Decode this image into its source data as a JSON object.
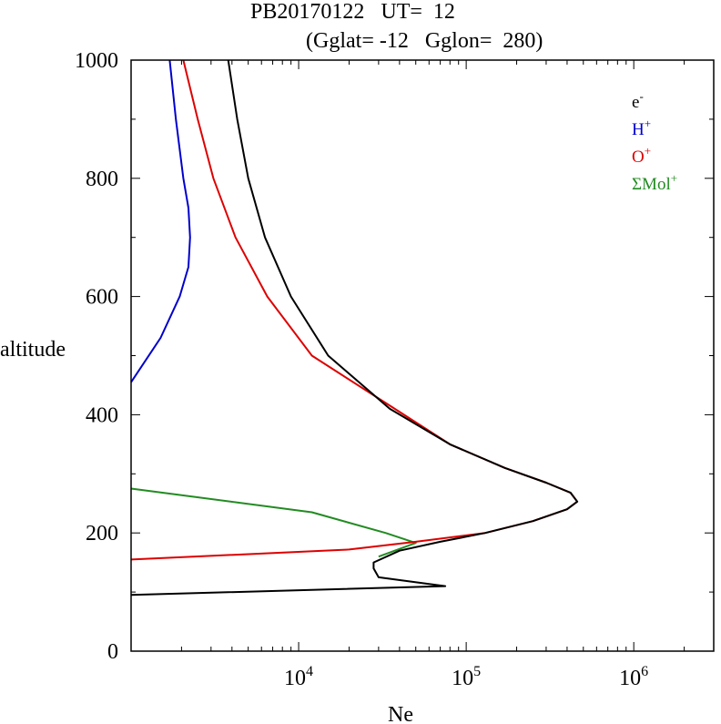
{
  "chart_data": {
    "type": "line",
    "title_line1": "PB20170122   UT=  12",
    "title_line2": "(Gglat= -12   Gglon=  280)",
    "xlabel": "Ne",
    "ylabel": "altitude",
    "x_scale": "log",
    "xlim": [
      1000,
      3000000
    ],
    "ylim": [
      0,
      1000
    ],
    "y_ticks": [
      0,
      200,
      400,
      600,
      800,
      1000
    ],
    "x_tick_labels": [
      {
        "base": "10",
        "exp": "4",
        "value": 10000
      },
      {
        "base": "10",
        "exp": "5",
        "value": 100000
      },
      {
        "base": "10",
        "exp": "6",
        "value": 1000000
      }
    ],
    "legend_position": "top-right",
    "series": [
      {
        "name": "e",
        "name_sup": "-",
        "color": "#000000",
        "points": [
          [
            1000,
            95
          ],
          [
            75000,
            110
          ],
          [
            30000,
            125
          ],
          [
            28000,
            140
          ],
          [
            28000,
            150
          ],
          [
            40000,
            170
          ],
          [
            70000,
            185
          ],
          [
            130000,
            200
          ],
          [
            250000,
            220
          ],
          [
            400000,
            240
          ],
          [
            460000,
            253
          ],
          [
            420000,
            268
          ],
          [
            300000,
            285
          ],
          [
            170000,
            310
          ],
          [
            80000,
            350
          ],
          [
            35000,
            410
          ],
          [
            15000,
            500
          ],
          [
            9000,
            600
          ],
          [
            6300,
            700
          ],
          [
            5000,
            800
          ],
          [
            4300,
            900
          ],
          [
            3800,
            1000
          ]
        ]
      },
      {
        "name": "H",
        "name_sup": "+",
        "color": "#0000cc",
        "points": [
          [
            1000,
            455
          ],
          [
            1500,
            530
          ],
          [
            1950,
            600
          ],
          [
            2200,
            650
          ],
          [
            2250,
            700
          ],
          [
            2200,
            750
          ],
          [
            2050,
            800
          ],
          [
            1850,
            900
          ],
          [
            1700,
            1000
          ]
        ]
      },
      {
        "name": "O",
        "name_sup": "+",
        "color": "#dd0000",
        "points": [
          [
            1000,
            155
          ],
          [
            20000,
            172
          ],
          [
            50000,
            185
          ],
          [
            130000,
            200
          ],
          [
            250000,
            220
          ],
          [
            400000,
            240
          ],
          [
            460000,
            253
          ],
          [
            420000,
            268
          ],
          [
            300000,
            285
          ],
          [
            170000,
            310
          ],
          [
            80000,
            350
          ],
          [
            33000,
            420
          ],
          [
            12000,
            500
          ],
          [
            6500,
            600
          ],
          [
            4200,
            700
          ],
          [
            3100,
            800
          ],
          [
            2500,
            900
          ],
          [
            2050,
            1000
          ]
        ]
      },
      {
        "name": "ΣMol",
        "name_sup": "+",
        "color": "#228b22",
        "points": [
          [
            1000,
            275
          ],
          [
            12000,
            235
          ],
          [
            33000,
            200
          ],
          [
            50000,
            183
          ],
          [
            30000,
            160
          ]
        ]
      }
    ]
  }
}
